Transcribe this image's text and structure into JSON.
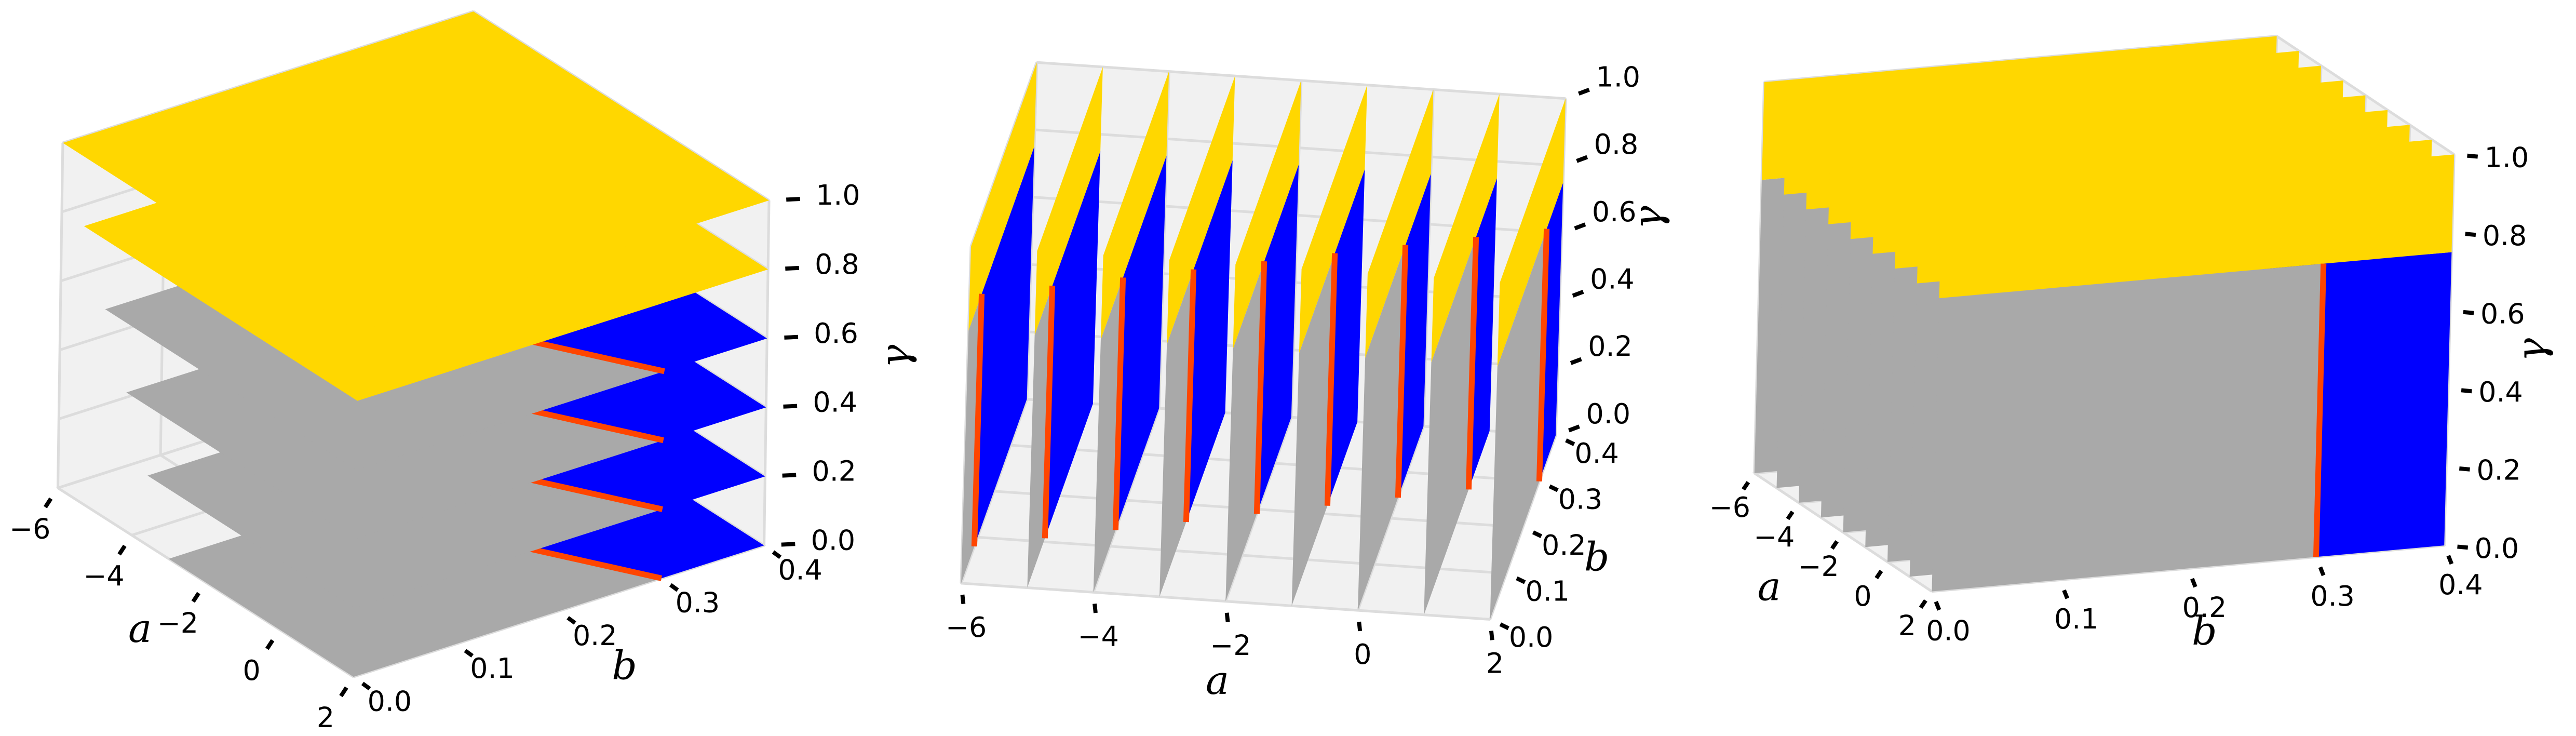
{
  "chart_data": [
    {
      "type": "slices3d",
      "xlabel": "a",
      "ylabel": "b",
      "zlabel": "γ",
      "xlim": [
        -6,
        2
      ],
      "ylim": [
        0,
        0.4
      ],
      "zlim": [
        0,
        1
      ],
      "xticks": [
        {
          "value": -6,
          "label": "−6"
        },
        {
          "value": -4,
          "label": "−4"
        },
        {
          "value": -2,
          "label": "−2"
        },
        0,
        2
      ],
      "yticks": [
        {
          "value": 0,
          "label": "0.0"
        },
        0.1,
        0.2,
        0.3,
        0.4
      ],
      "zticks": [
        {
          "value": 0,
          "label": "0.0"
        },
        0.2,
        0.4,
        0.6,
        0.8,
        {
          "value": 1,
          "label": "1.0"
        }
      ],
      "slice_axis": "z",
      "slices": [
        0,
        0.2,
        0.4,
        0.6,
        0.8,
        1
      ],
      "colors": [
        "#ffd700",
        "#0000ff",
        "#a9a9a9",
        "#ff4500"
      ]
    },
    {
      "type": "slices3d",
      "xlabel": "a",
      "ylabel": "b",
      "zlabel": "γ",
      "xlim": [
        -6,
        2
      ],
      "ylim": [
        0,
        0.4
      ],
      "zlim": [
        0,
        1
      ],
      "xticks": [
        {
          "value": -6,
          "label": "−6"
        },
        {
          "value": -4,
          "label": "−4"
        },
        {
          "value": -2,
          "label": "−2"
        },
        0,
        2
      ],
      "yticks": [
        {
          "value": 0,
          "label": "0.0"
        },
        0.1,
        0.2,
        0.3,
        0.4
      ],
      "zticks": [
        {
          "value": 0,
          "label": "0.0"
        },
        0.2,
        0.4,
        0.6,
        0.8,
        {
          "value": 1,
          "label": "1.0"
        }
      ],
      "slice_axis": "x",
      "slices": [
        -6,
        -5,
        -4,
        -3,
        -2,
        -1,
        0,
        1,
        2
      ],
      "colors": [
        "#ffd700",
        "#0000ff",
        "#a9a9a9",
        "#ff4500"
      ]
    },
    {
      "type": "slices3d",
      "xlabel": "a",
      "ylabel": "b",
      "zlabel": "γ",
      "xlim": [
        -6,
        2
      ],
      "ylim": [
        0,
        0.4
      ],
      "zlim": [
        0,
        1
      ],
      "xticks": [
        {
          "value": -6,
          "label": "−6"
        },
        {
          "value": -4,
          "label": "−4"
        },
        {
          "value": -2,
          "label": "−2"
        },
        0,
        2
      ],
      "yticks": [
        {
          "value": 0,
          "label": "0.0"
        },
        0.1,
        0.2,
        0.3,
        0.4
      ],
      "zticks": [
        {
          "value": 0,
          "label": "0.0"
        },
        0.2,
        0.4,
        0.6,
        0.8,
        {
          "value": 1,
          "label": "1.0"
        }
      ],
      "slice_axis": "x",
      "slices": [
        -6,
        -5,
        -4,
        -3,
        -2,
        -1,
        0,
        1,
        2
      ],
      "colors": [
        "#ffd700",
        "#0000ff",
        "#a9a9a9",
        "#ff4500"
      ]
    }
  ]
}
